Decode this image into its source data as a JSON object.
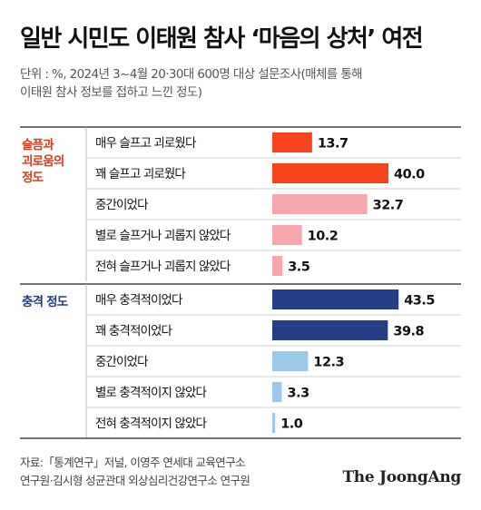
{
  "header": {
    "title": "일반 시민도 이태원 참사 ‘마음의 상처’ 여전",
    "subtitle_lines": [
      "단위 : %, 2024년 3~4월 20·30대 600명 대상 설문조사(매체를 통해",
      "이태원 참사 정보를 접하고 느낀 정도)"
    ]
  },
  "chart_data": {
    "type": "bar",
    "orientation": "horizontal",
    "xlim": [
      0,
      50
    ],
    "grid": false,
    "groups": [
      {
        "label_lines": [
          "슬픔과",
          "괴로움의",
          "정도"
        ],
        "color": "#e03a1e",
        "categories": [
          "매우 슬프고 괴로웠다",
          "꽤 슬프고 괴로웠다",
          "중간이었다",
          "별로 슬프거나 괴롭지 않았다",
          "전혀 슬프거나 괴롭지 않았다"
        ],
        "values": [
          13.7,
          40.0,
          32.7,
          10.2,
          3.5
        ],
        "labels": [
          "13.7",
          "40.0",
          "32.7",
          "10.2",
          "3.5"
        ],
        "colors": [
          "#f5431c",
          "#f5431c",
          "#f7a6ad",
          "#f7a6ad",
          "#f7a6ad"
        ]
      },
      {
        "label_lines": [
          "충격 정도"
        ],
        "color": "#203c82",
        "categories": [
          "매우 충격적이었다",
          "꽤 충격적이었다",
          "중간이었다",
          "별로 충격적이지 않았다",
          "전혀 충격적이지 않았다"
        ],
        "values": [
          43.5,
          39.8,
          12.3,
          3.3,
          1.0
        ],
        "labels": [
          "43.5",
          "39.8",
          "12.3",
          "3.3",
          "1.0"
        ],
        "colors": [
          "#243f86",
          "#243f86",
          "#9cc9ea",
          "#9cc9ea",
          "#9cc9ea"
        ]
      }
    ]
  },
  "footer": {
    "source_lines": [
      "자료:「통계연구」저널, 이영주 연세대 교육연구소",
      "연구원·김시형 성균관대 외상심리건강연구소 연구원"
    ],
    "brand": "The JoongAng"
  }
}
